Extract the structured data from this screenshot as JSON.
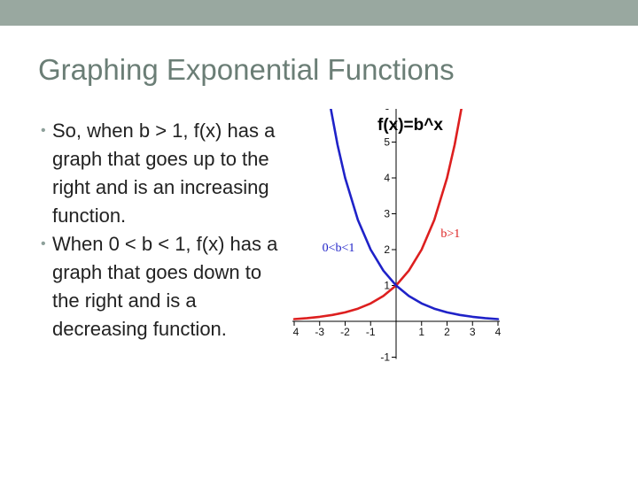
{
  "slide": {
    "title": "Graphing Exponential Functions",
    "bullets": [
      "So, when b > 1, f(x) has a graph that goes up to the right and is an increasing function.",
      "When 0 < b < 1, f(x) has a graph that goes down to the right and is a decreasing function."
    ]
  },
  "colors": {
    "band": "#99a8a0",
    "title": "#6b7e76",
    "increasing_curve": "#dd1f1f",
    "decreasing_curve": "#1f22c8"
  },
  "chart_data": {
    "type": "line",
    "title": "f(x)=b^x",
    "xlim": [
      -4,
      4
    ],
    "ylim": [
      -1,
      6
    ],
    "x_tick_labels": [
      "-4",
      "-3",
      "-2",
      "-1",
      "1",
      "2",
      "3",
      "4"
    ],
    "y_tick_labels": [
      "6",
      "5",
      "4",
      "3",
      "2",
      "1",
      "-1"
    ],
    "grid": false,
    "series": [
      {
        "name": "b>1",
        "color": "#dd1f1f",
        "x": [
          -4,
          -3.5,
          -3,
          -2.5,
          -2,
          -1.5,
          -1,
          -0.5,
          0,
          0.5,
          1,
          1.5,
          2,
          2.3,
          2.58
        ],
        "y": [
          0.0625,
          0.088,
          0.125,
          0.177,
          0.25,
          0.354,
          0.5,
          0.707,
          1,
          1.414,
          2,
          2.828,
          4,
          4.925,
          6
        ]
      },
      {
        "name": "0<b<1",
        "color": "#1f22c8",
        "x": [
          -2.58,
          -2.3,
          -2,
          -1.5,
          -1,
          -0.5,
          0,
          0.5,
          1,
          1.5,
          2,
          2.5,
          3,
          3.5,
          4
        ],
        "y": [
          6,
          4.925,
          4,
          2.828,
          2,
          1.414,
          1,
          0.707,
          0.5,
          0.354,
          0.25,
          0.177,
          0.125,
          0.088,
          0.0625
        ]
      }
    ]
  }
}
